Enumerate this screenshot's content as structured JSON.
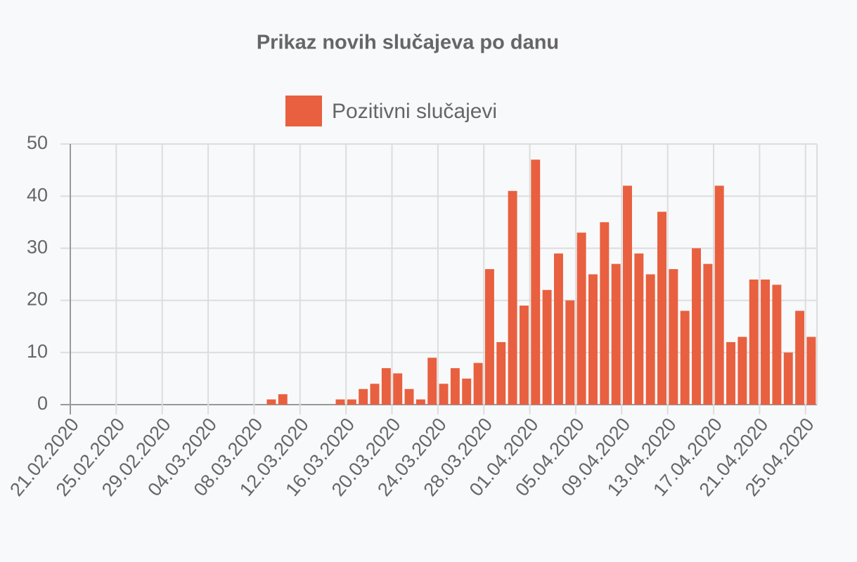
{
  "chart_data": {
    "type": "bar",
    "title": "Prikaz novih slučajeva po danu",
    "series": [
      {
        "name": "Pozitivni slučajevi",
        "color": "#e8603f",
        "values": [
          0,
          0,
          0,
          0,
          0,
          0,
          0,
          0,
          0,
          0,
          0,
          0,
          0,
          0,
          0,
          0,
          0,
          1,
          2,
          0,
          0,
          0,
          0,
          1,
          1,
          3,
          4,
          7,
          6,
          3,
          1,
          9,
          4,
          7,
          5,
          8,
          26,
          12,
          41,
          19,
          47,
          22,
          29,
          20,
          33,
          25,
          35,
          27,
          42,
          29,
          25,
          37,
          26,
          18,
          30,
          27,
          42,
          12,
          13,
          24,
          24,
          23,
          10,
          18,
          13
        ]
      }
    ],
    "categories": [
      "21.02.2020",
      null,
      null,
      null,
      "25.02.2020",
      null,
      null,
      null,
      "29.02.2020",
      null,
      null,
      null,
      "04.03.2020",
      null,
      null,
      null,
      "08.03.2020",
      null,
      null,
      null,
      "12.03.2020",
      null,
      null,
      null,
      "16.03.2020",
      null,
      null,
      null,
      "20.03.2020",
      null,
      null,
      null,
      "24.03.2020",
      null,
      null,
      null,
      "28.03.2020",
      null,
      null,
      null,
      "01.04.2020",
      null,
      null,
      null,
      "05.04.2020",
      null,
      null,
      null,
      "09.04.2020",
      null,
      null,
      null,
      "13.04.2020",
      null,
      null,
      null,
      "17.04.2020",
      null,
      null,
      null,
      "21.04.2020",
      null,
      null,
      null,
      "25.04.2020"
    ],
    "ylim": [
      0,
      50
    ],
    "yticks": [
      0,
      10,
      20,
      30,
      40,
      50
    ],
    "grid": true,
    "legend": "top"
  }
}
